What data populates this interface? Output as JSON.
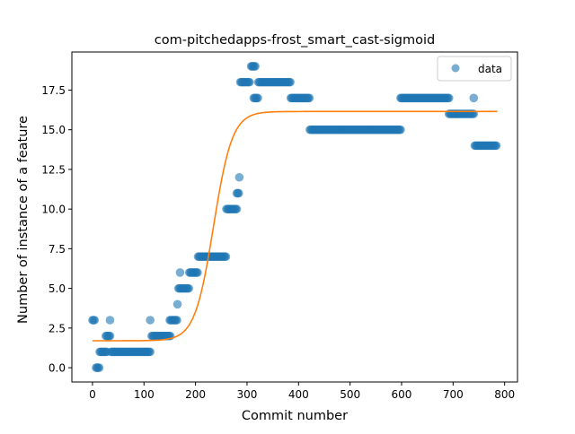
{
  "chart_data": {
    "type": "scatter",
    "title": "com-pitchedapps-frost_smart_cast-sigmoid",
    "xlabel": "Commit number",
    "ylabel": "Number of instance of a feature",
    "xlim": [
      -40,
      825
    ],
    "ylim": [
      -0.9,
      19.9
    ],
    "xticks": [
      0,
      100,
      200,
      300,
      400,
      500,
      600,
      700,
      800
    ],
    "yticks": [
      0.0,
      2.5,
      5.0,
      7.5,
      10.0,
      12.5,
      15.0,
      17.5
    ],
    "ytick_labels": [
      "0.0",
      "2.5",
      "5.0",
      "7.5",
      "10.0",
      "12.5",
      "15.0",
      "17.5"
    ],
    "grid": false,
    "legend": {
      "position": "top-right",
      "entries": [
        "data"
      ]
    },
    "colors": {
      "data": "#1f77b4",
      "fit": "#ff7f0e"
    },
    "series": [
      {
        "name": "data",
        "kind": "points",
        "segments": [
          {
            "x_from": 0,
            "x_to": 4,
            "y": 3
          },
          {
            "x_from": 7,
            "x_to": 13,
            "y": 0
          },
          {
            "x_from": 14,
            "x_to": 28,
            "y": 1
          },
          {
            "x_from": 26,
            "x_to": 35,
            "y": 2
          },
          {
            "x_from": 34,
            "x_to": 34,
            "y": 3
          },
          {
            "x_from": 36,
            "x_to": 112,
            "y": 1
          },
          {
            "x_from": 112,
            "x_to": 112,
            "y": 3
          },
          {
            "x_from": 115,
            "x_to": 152,
            "y": 2
          },
          {
            "x_from": 150,
            "x_to": 165,
            "y": 3
          },
          {
            "x_from": 165,
            "x_to": 165,
            "y": 4
          },
          {
            "x_from": 167,
            "x_to": 188,
            "y": 5
          },
          {
            "x_from": 170,
            "x_to": 170,
            "y": 6
          },
          {
            "x_from": 188,
            "x_to": 205,
            "y": 6
          },
          {
            "x_from": 205,
            "x_to": 260,
            "y": 7
          },
          {
            "x_from": 260,
            "x_to": 280,
            "y": 10
          },
          {
            "x_from": 280,
            "x_to": 284,
            "y": 11
          },
          {
            "x_from": 285,
            "x_to": 285,
            "y": 12
          },
          {
            "x_from": 287,
            "x_to": 305,
            "y": 18
          },
          {
            "x_from": 308,
            "x_to": 316,
            "y": 19
          },
          {
            "x_from": 313,
            "x_to": 322,
            "y": 17
          },
          {
            "x_from": 322,
            "x_to": 385,
            "y": 18
          },
          {
            "x_from": 385,
            "x_to": 422,
            "y": 17
          },
          {
            "x_from": 422,
            "x_to": 598,
            "y": 15
          },
          {
            "x_from": 598,
            "x_to": 692,
            "y": 17
          },
          {
            "x_from": 692,
            "x_to": 740,
            "y": 16
          },
          {
            "x_from": 740,
            "x_to": 740,
            "y": 17
          },
          {
            "x_from": 742,
            "x_to": 785,
            "y": 14
          }
        ]
      },
      {
        "name": "",
        "kind": "sigmoid-fit",
        "x_range": [
          0,
          787
        ],
        "min": 1.7,
        "max": 16.15,
        "midpoint": 235,
        "steepness": 0.055
      }
    ]
  }
}
